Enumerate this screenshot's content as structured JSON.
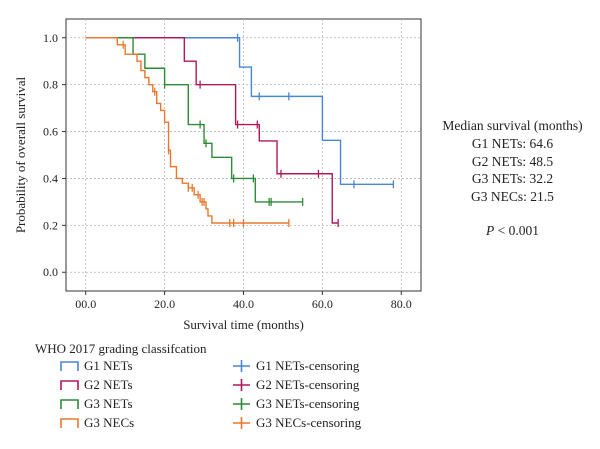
{
  "chart_data": {
    "type": "line",
    "subtype": "kaplan-meier survival curves",
    "xlabel": "Survival time (months)",
    "ylabel": "Probability of overall survival",
    "xlim": [
      -5,
      85
    ],
    "ylim": [
      -0.08,
      1.08
    ],
    "xticks": [
      0,
      20,
      40,
      60,
      80
    ],
    "xtick_labels": [
      "00.0",
      "20.0",
      "40.0",
      "60.0",
      "80.0"
    ],
    "yticks": [
      0.0,
      0.2,
      0.4,
      0.6,
      0.8,
      1.0
    ],
    "ytick_labels": [
      "0.0",
      "0.2",
      "0.4",
      "0.6",
      "0.8",
      "1.0"
    ],
    "grid": true,
    "series": [
      {
        "name": "G1 NETs",
        "color": "#4a86d6",
        "steps": [
          [
            0,
            1.0
          ],
          [
            39,
            0.875
          ],
          [
            42,
            0.75
          ],
          [
            60,
            0.5625
          ],
          [
            64.6,
            0.375
          ],
          [
            78,
            0.375
          ]
        ],
        "censor_x": [
          38.5,
          44,
          51.5,
          68,
          78
        ]
      },
      {
        "name": "G2 NETs",
        "color": "#b0195c",
        "steps": [
          [
            0,
            1.0
          ],
          [
            25,
            0.9
          ],
          [
            28,
            0.8
          ],
          [
            38,
            0.63
          ],
          [
            44,
            0.56
          ],
          [
            48.5,
            0.42
          ],
          [
            60,
            0.42
          ],
          [
            62.5,
            0.21
          ],
          [
            64,
            0.21
          ]
        ],
        "censor_x": [
          29,
          38.5,
          43.5,
          49.5,
          59,
          64
        ]
      },
      {
        "name": "G3 NETs",
        "color": "#2f8a35",
        "steps": [
          [
            0,
            1.0
          ],
          [
            12,
            0.93
          ],
          [
            15,
            0.87
          ],
          [
            20,
            0.8
          ],
          [
            26,
            0.63
          ],
          [
            30,
            0.55
          ],
          [
            32,
            0.49
          ],
          [
            37,
            0.4
          ],
          [
            43,
            0.3
          ],
          [
            55,
            0.3
          ]
        ],
        "censor_x": [
          20,
          29,
          30.5,
          37.5,
          42.5,
          46.5,
          47,
          55
        ]
      },
      {
        "name": "G3 NECs",
        "color": "#e8782f",
        "steps": [
          [
            0,
            1.0
          ],
          [
            8,
            0.97
          ],
          [
            10,
            0.93
          ],
          [
            13,
            0.9
          ],
          [
            14,
            0.86
          ],
          [
            15,
            0.83
          ],
          [
            16,
            0.8
          ],
          [
            17,
            0.77
          ],
          [
            18,
            0.72
          ],
          [
            19,
            0.69
          ],
          [
            20,
            0.64
          ],
          [
            21,
            0.52
          ],
          [
            21.5,
            0.45
          ],
          [
            23,
            0.4
          ],
          [
            24.5,
            0.38
          ],
          [
            26,
            0.36
          ],
          [
            27.5,
            0.33
          ],
          [
            29,
            0.3
          ],
          [
            30.5,
            0.27
          ],
          [
            31,
            0.24
          ],
          [
            32,
            0.21
          ],
          [
            51.5,
            0.21
          ]
        ],
        "censor_x": [
          9.5,
          17.5,
          21,
          26,
          27,
          28.5,
          29.5,
          30,
          36.5,
          37.5,
          40,
          51.5
        ]
      }
    ],
    "legend_title": "WHO 2017 grading classifcation",
    "legend_placement": "bottom",
    "legend": [
      {
        "label": "G1 NETs",
        "kind": "line",
        "color": "#4a86d6"
      },
      {
        "label": "G2 NETs",
        "kind": "line",
        "color": "#b0195c"
      },
      {
        "label": "G3 NETs",
        "kind": "line",
        "color": "#2f8a35"
      },
      {
        "label": "G3 NECs",
        "kind": "line",
        "color": "#e8782f"
      },
      {
        "label": "G1 NETs-censoring",
        "kind": "censor",
        "color": "#4a86d6"
      },
      {
        "label": "G2 NETs-censoring",
        "kind": "censor",
        "color": "#b0195c"
      },
      {
        "label": "G3 NETs-censoring",
        "kind": "censor",
        "color": "#2f8a35"
      },
      {
        "label": "G3 NECs-censoring",
        "kind": "censor",
        "color": "#e8782f"
      }
    ]
  },
  "side_panel": {
    "title": "Median survival (months)",
    "stats": [
      "G1 NETs: 64.6",
      "G2 NETs: 48.5",
      "G3 NETs: 32.2",
      "G3 NECs: 21.5"
    ],
    "pvalue_symbol": "P",
    "pvalue_rest": " < 0.001"
  }
}
